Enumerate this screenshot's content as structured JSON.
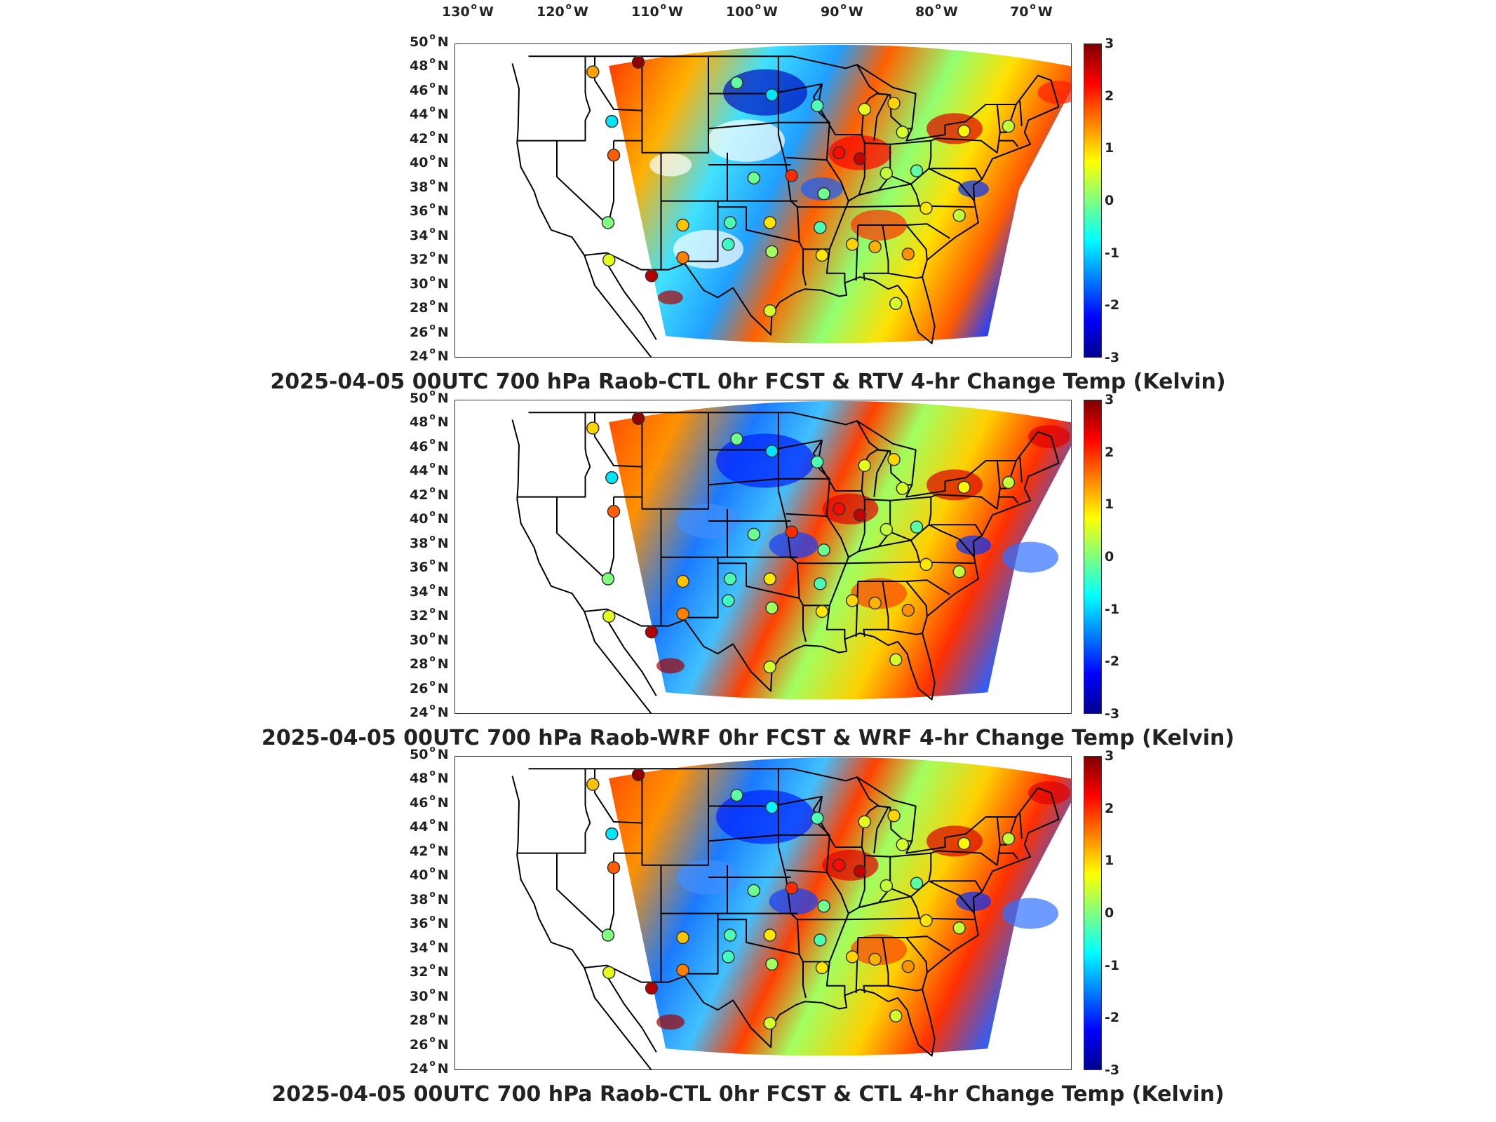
{
  "lon_labels": [
    {
      "value": "130",
      "suffix": "W"
    },
    {
      "value": "120",
      "suffix": "W"
    },
    {
      "value": "110",
      "suffix": "W"
    },
    {
      "value": "100",
      "suffix": "W"
    },
    {
      "value": "90",
      "suffix": "W"
    },
    {
      "value": "80",
      "suffix": "W"
    },
    {
      "value": "70",
      "suffix": "W"
    }
  ],
  "lat_labels": [
    {
      "value": "50",
      "suffix": "N"
    },
    {
      "value": "48",
      "suffix": "N"
    },
    {
      "value": "46",
      "suffix": "N"
    },
    {
      "value": "44",
      "suffix": "N"
    },
    {
      "value": "42",
      "suffix": "N"
    },
    {
      "value": "40",
      "suffix": "N"
    },
    {
      "value": "38",
      "suffix": "N"
    },
    {
      "value": "36",
      "suffix": "N"
    },
    {
      "value": "34",
      "suffix": "N"
    },
    {
      "value": "32",
      "suffix": "N"
    },
    {
      "value": "30",
      "suffix": "N"
    },
    {
      "value": "28",
      "suffix": "N"
    },
    {
      "value": "26",
      "suffix": "N"
    },
    {
      "value": "24",
      "suffix": "N"
    }
  ],
  "colorbar": {
    "ticks": [
      "3",
      "2",
      "1",
      "0",
      "-1",
      "-2",
      "-3"
    ],
    "range": [
      -3,
      3
    ],
    "colormap": "jet"
  },
  "panels": [
    {
      "title": "2025-04-05 00UTC 700 hPa Raob-CTL 0hr FCST & RTV 4-hr Change Temp (Kelvin)"
    },
    {
      "title": "2025-04-05 00UTC 700 hPa Raob-WRF 0hr FCST & WRF 4-hr Change Temp (Kelvin)"
    },
    {
      "title": "2025-04-05 00UTC 700 hPa Raob-CTL 0hr FCST & CTL 4-hr Change Temp (Kelvin)"
    }
  ],
  "stations": [
    {
      "lon": -116.2,
      "lat": 47.7,
      "v": [
        1.3,
        1.0,
        1.1
      ]
    },
    {
      "lon": -111.4,
      "lat": 48.5,
      "v": [
        2.9,
        2.9,
        2.9
      ]
    },
    {
      "lon": -101.0,
      "lat": 46.8,
      "v": [
        -0.2,
        -0.1,
        -0.2
      ]
    },
    {
      "lon": -97.3,
      "lat": 45.8,
      "v": [
        -0.9,
        -0.9,
        -0.8
      ]
    },
    {
      "lon": -92.5,
      "lat": 44.9,
      "v": [
        -0.3,
        -0.3,
        -0.3
      ]
    },
    {
      "lon": -87.5,
      "lat": 44.6,
      "v": [
        0.6,
        0.6,
        0.6
      ]
    },
    {
      "lon": -84.4,
      "lat": 45.1,
      "v": [
        1.0,
        1.0,
        1.0
      ]
    },
    {
      "lon": -83.5,
      "lat": 42.7,
      "v": [
        0.5,
        0.5,
        0.5
      ]
    },
    {
      "lon": -77.0,
      "lat": 42.8,
      "v": [
        0.8,
        0.8,
        0.8
      ]
    },
    {
      "lon": -72.3,
      "lat": 43.2,
      "v": [
        0.4,
        0.4,
        0.4
      ]
    },
    {
      "lon": -114.2,
      "lat": 43.6,
      "v": [
        -0.9,
        -0.9,
        -0.9
      ]
    },
    {
      "lon": -114.0,
      "lat": 40.8,
      "v": [
        1.7,
        1.7,
        1.7
      ]
    },
    {
      "lon": -99.2,
      "lat": 38.9,
      "v": [
        -0.1,
        -0.1,
        -0.1
      ]
    },
    {
      "lon": -95.2,
      "lat": 39.1,
      "v": [
        2.0,
        2.0,
        2.0
      ]
    },
    {
      "lon": -90.2,
      "lat": 41.0,
      "v": [
        2.2,
        2.2,
        2.2
      ]
    },
    {
      "lon": -88.0,
      "lat": 40.5,
      "v": [
        2.6,
        2.6,
        2.6
      ]
    },
    {
      "lon": -85.2,
      "lat": 39.3,
      "v": [
        0.4,
        0.4,
        0.4
      ]
    },
    {
      "lon": -82.0,
      "lat": 39.5,
      "v": [
        -0.2,
        -0.2,
        -0.2
      ]
    },
    {
      "lon": -91.8,
      "lat": 37.6,
      "v": [
        -0.1,
        -0.1,
        -0.1
      ]
    },
    {
      "lon": -81.0,
      "lat": 36.4,
      "v": [
        0.9,
        0.9,
        0.9
      ]
    },
    {
      "lon": -77.5,
      "lat": 35.8,
      "v": [
        0.4,
        0.4,
        0.4
      ]
    },
    {
      "lon": -114.6,
      "lat": 35.2,
      "v": [
        0.0,
        0.0,
        0.0
      ]
    },
    {
      "lon": -106.7,
      "lat": 35.0,
      "v": [
        1.1,
        1.1,
        1.1
      ]
    },
    {
      "lon": -101.7,
      "lat": 35.2,
      "v": [
        -0.3,
        -0.3,
        -0.3
      ]
    },
    {
      "lon": -97.5,
      "lat": 35.2,
      "v": [
        0.9,
        0.9,
        0.9
      ]
    },
    {
      "lon": -92.2,
      "lat": 34.8,
      "v": [
        -0.3,
        -0.3,
        -0.3
      ]
    },
    {
      "lon": -101.9,
      "lat": 33.4,
      "v": [
        -0.4,
        -0.4,
        -0.4
      ]
    },
    {
      "lon": -97.3,
      "lat": 32.8,
      "v": [
        0.2,
        0.2,
        0.2
      ]
    },
    {
      "lon": -92.0,
      "lat": 32.5,
      "v": [
        0.9,
        0.9,
        0.9
      ]
    },
    {
      "lon": -88.8,
      "lat": 33.4,
      "v": [
        1.0,
        1.0,
        1.0
      ]
    },
    {
      "lon": -86.4,
      "lat": 33.2,
      "v": [
        1.2,
        1.2,
        1.2
      ]
    },
    {
      "lon": -82.9,
      "lat": 32.6,
      "v": [
        1.4,
        1.4,
        1.4
      ]
    },
    {
      "lon": -106.7,
      "lat": 32.3,
      "v": [
        1.5,
        1.5,
        1.5
      ]
    },
    {
      "lon": -114.5,
      "lat": 32.1,
      "v": [
        0.6,
        0.6,
        0.6
      ]
    },
    {
      "lon": -110.0,
      "lat": 30.8,
      "v": [
        2.7,
        2.7,
        2.7
      ]
    },
    {
      "lon": -97.5,
      "lat": 27.9,
      "v": [
        0.5,
        0.5,
        0.5
      ]
    },
    {
      "lon": -84.2,
      "lat": 28.5,
      "v": [
        0.5,
        0.5,
        0.5
      ]
    }
  ]
}
